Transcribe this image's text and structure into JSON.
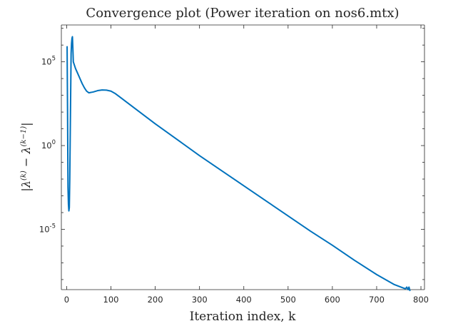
{
  "chart_data": {
    "type": "line",
    "title": "Convergence plot (Power iteration on nos6.mtx)",
    "xlabel": "Iteration index, k",
    "ylabel": "|λ(k) − λ(k−1)|",
    "ylabel_parts": {
      "lhs": "|λ",
      "sup1": "(k)",
      "mid": " − λ",
      "sup2": "(k−1)",
      "rhs": "|"
    },
    "xlim": [
      -12,
      808
    ],
    "ylim_exponents": [
      -8.6,
      7.2
    ],
    "yscale": "log",
    "grid": false,
    "line_color": "#0072BD",
    "x_ticks": [
      0,
      100,
      200,
      300,
      400,
      500,
      600,
      700,
      800
    ],
    "x_tick_labels": [
      "0",
      "100",
      "200",
      "300",
      "400",
      "500",
      "600",
      "700",
      "800"
    ],
    "y_ticks_exponents": [
      -5,
      0,
      5
    ],
    "y_tick_labels": [
      {
        "base": "10",
        "exp": "-5"
      },
      {
        "base": "10",
        "exp": "0"
      },
      {
        "base": "10",
        "exp": "5"
      }
    ],
    "series": [
      {
        "points_log10": [
          [
            1,
            5.9
          ],
          [
            2,
            2.0
          ],
          [
            3,
            -2.5
          ],
          [
            4,
            -3.5
          ],
          [
            5,
            -3.9
          ],
          [
            6,
            -3.7
          ],
          [
            7,
            -2.0
          ],
          [
            8,
            0.5
          ],
          [
            9,
            3.0
          ],
          [
            10,
            5.5
          ],
          [
            11,
            6.1
          ],
          [
            12,
            6.4
          ],
          [
            13,
            6.5
          ],
          [
            14,
            5.8
          ],
          [
            15,
            5.0
          ],
          [
            20,
            4.6
          ],
          [
            25,
            4.3
          ],
          [
            30,
            4.0
          ],
          [
            35,
            3.7
          ],
          [
            40,
            3.45
          ],
          [
            45,
            3.25
          ],
          [
            50,
            3.15
          ],
          [
            60,
            3.2
          ],
          [
            70,
            3.28
          ],
          [
            80,
            3.32
          ],
          [
            90,
            3.31
          ],
          [
            100,
            3.25
          ],
          [
            110,
            3.1
          ],
          [
            120,
            2.9
          ],
          [
            150,
            2.3
          ],
          [
            200,
            1.3
          ],
          [
            250,
            0.35
          ],
          [
            300,
            -0.6
          ],
          [
            350,
            -1.5
          ],
          [
            400,
            -2.4
          ],
          [
            450,
            -3.3
          ],
          [
            500,
            -4.2
          ],
          [
            550,
            -5.1
          ],
          [
            600,
            -5.95
          ],
          [
            650,
            -6.85
          ],
          [
            700,
            -7.7
          ],
          [
            740,
            -8.3
          ],
          [
            760,
            -8.5
          ],
          [
            765,
            -8.55
          ],
          [
            768,
            -8.45
          ],
          [
            771,
            -8.6
          ],
          [
            773,
            -8.45
          ],
          [
            775,
            -8.65
          ]
        ]
      }
    ]
  }
}
